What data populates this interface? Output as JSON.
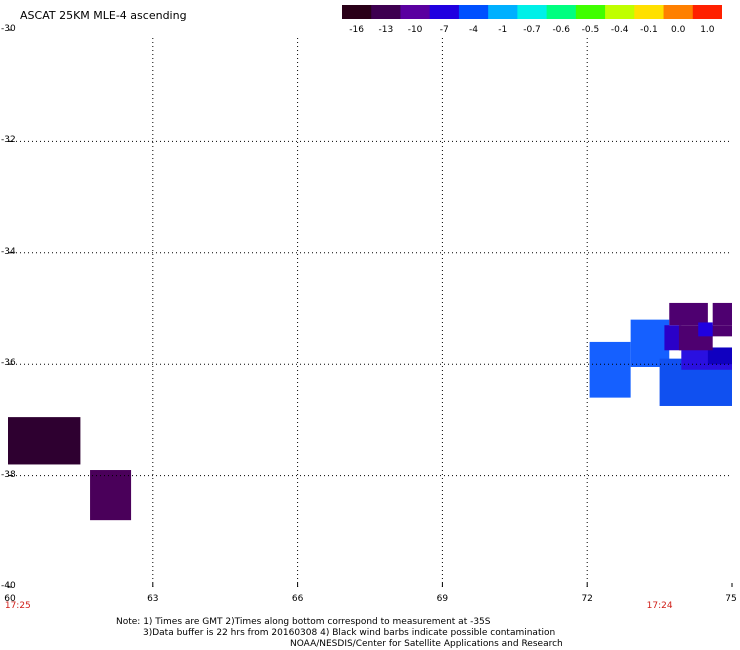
{
  "title": "ASCAT 25KM MLE-4 ascending",
  "colorbar": {
    "labels": [
      "-16",
      "-13",
      "-10",
      "-7",
      "-4",
      "-1",
      "-0.7",
      "-0.6",
      "-0.5",
      "-0.4",
      "-0.1",
      "0.0",
      "1.0"
    ],
    "colors": [
      "#2a0018",
      "#3e0050",
      "#5a00a0",
      "#2000e0",
      "#0050ff",
      "#00b0ff",
      "#00f0e8",
      "#00ff80",
      "#40ff00",
      "#c0ff00",
      "#ffe000",
      "#ff8000",
      "#ff2000"
    ]
  },
  "axes": {
    "lat_labels": [
      "-30",
      "-32",
      "-34",
      "-36",
      "-38",
      "-40"
    ],
    "lon_labels": [
      "60",
      "63",
      "66",
      "69",
      "72",
      "75"
    ],
    "lat_range": [
      -40,
      -30
    ],
    "lon_range": [
      60,
      75
    ]
  },
  "time_labels": {
    "left": "17:25",
    "right": "17:24",
    "left_lon": 60.1,
    "right_lon": 73.5
  },
  "notes": {
    "line1": "Note: 1) Times are GMT 2)Times along bottom correspond to measurement at -35S",
    "line2": "3)Data buffer is 22 hrs from 20160308 4) Black wind barbs indicate possible contamination",
    "line3": "NOAA/NESDIS/Center for Satellite Applications and Research"
  },
  "data_cells": [
    {
      "lon0": 60.0,
      "lon1": 61.5,
      "lat0": -37.8,
      "lat1": -36.95,
      "color": "#2e0030"
    },
    {
      "lon0": 61.7,
      "lon1": 62.55,
      "lat0": -38.8,
      "lat1": -37.9,
      "color": "#4a005a"
    },
    {
      "lon0": 72.05,
      "lon1": 72.9,
      "lat0": -36.6,
      "lat1": -35.6,
      "color": "#1560ff"
    },
    {
      "lon0": 72.9,
      "lon1": 73.7,
      "lat0": -36.05,
      "lat1": -35.2,
      "color": "#1560ff"
    },
    {
      "lon0": 73.5,
      "lon1": 75.0,
      "lat0": -36.75,
      "lat1": -35.9,
      "color": "#1050f0"
    },
    {
      "lon0": 73.95,
      "lon1": 75.0,
      "lat0": -36.1,
      "lat1": -35.7,
      "color": "#2a10e0"
    },
    {
      "lon0": 74.5,
      "lon1": 75.0,
      "lat0": -36.0,
      "lat1": -35.7,
      "color": "#1000c0"
    },
    {
      "lon0": 73.6,
      "lon1": 73.95,
      "lat0": -35.75,
      "lat1": -35.3,
      "color": "#2a00c8"
    },
    {
      "lon0": 73.7,
      "lon1": 74.5,
      "lat0": -35.3,
      "lat1": -34.9,
      "color": "#4e0070"
    },
    {
      "lon0": 73.9,
      "lon1": 74.6,
      "lat0": -35.75,
      "lat1": -35.3,
      "color": "#4e0070"
    },
    {
      "lon0": 74.5,
      "lon1": 75.0,
      "lat0": -35.5,
      "lat1": -35.3,
      "color": "#4e0070"
    },
    {
      "lon0": 74.6,
      "lon1": 75.0,
      "lat0": -35.3,
      "lat1": -34.9,
      "color": "#4e0070"
    },
    {
      "lon0": 74.3,
      "lon1": 74.6,
      "lat0": -35.5,
      "lat1": -35.25,
      "color": "#2000e0"
    }
  ]
}
